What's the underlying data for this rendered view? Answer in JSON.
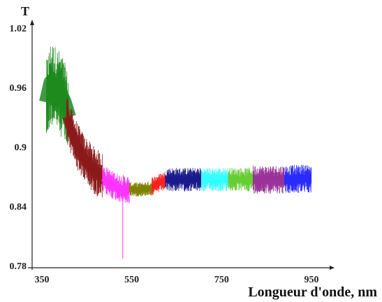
{
  "chart_data": {
    "type": "line",
    "title": "",
    "ylabel": "T",
    "xlabel": "Longueur d'onde, nm",
    "xlim": [
      340,
      975
    ],
    "ylim": [
      0.78,
      1.02
    ],
    "x_ticks": [
      350,
      550,
      750,
      950
    ],
    "x_tick_labels": [
      "350",
      "550",
      "750",
      "950"
    ],
    "y_ticks": [
      0.78,
      0.84,
      0.9,
      0.96,
      1.02
    ],
    "y_tick_labels": [
      "0.78",
      "0.84",
      "0.9",
      "0.96",
      "1.02"
    ],
    "grid": false,
    "legend": "none",
    "series": [
      {
        "color": "#1e8a1e",
        "x": [
          360,
          370,
          380,
          390,
          400,
          410
        ],
        "y": [
          0.945,
          0.965,
          0.96,
          0.955,
          0.945,
          0.93
        ],
        "noise": 0.035
      },
      {
        "color": "#8b1a1a",
        "x": [
          405,
          415,
          425,
          435,
          445,
          455,
          465,
          475,
          485
        ],
        "y": [
          0.93,
          0.915,
          0.905,
          0.895,
          0.888,
          0.882,
          0.877,
          0.873,
          0.87
        ],
        "noise": 0.02
      },
      {
        "color": "#ff33ff",
        "x": [
          485,
          495,
          505,
          515,
          525,
          535,
          545
        ],
        "y": [
          0.868,
          0.865,
          0.862,
          0.86,
          0.858,
          0.857,
          0.856
        ],
        "noise": 0.012
      },
      {
        "color": "#808000",
        "x": [
          545,
          555,
          565,
          575,
          585,
          595
        ],
        "y": [
          0.857,
          0.857,
          0.857,
          0.857,
          0.858,
          0.858
        ],
        "noise": 0.006
      },
      {
        "color": "#ff2020",
        "x": [
          595,
          605,
          615,
          625
        ],
        "y": [
          0.86,
          0.862,
          0.864,
          0.866
        ],
        "noise": 0.008
      },
      {
        "color": "#1a1a8c",
        "x": [
          625,
          645,
          665,
          685,
          705
        ],
        "y": [
          0.867,
          0.867,
          0.867,
          0.867,
          0.867
        ],
        "noise": 0.01
      },
      {
        "color": "#33ffff",
        "x": [
          705,
          725,
          745,
          765
        ],
        "y": [
          0.867,
          0.867,
          0.867,
          0.867
        ],
        "noise": 0.01
      },
      {
        "color": "#66cc33",
        "x": [
          765,
          785,
          805,
          820
        ],
        "y": [
          0.867,
          0.867,
          0.867,
          0.867
        ],
        "noise": 0.01
      },
      {
        "color": "#993399",
        "x": [
          820,
          840,
          860,
          880,
          890
        ],
        "y": [
          0.867,
          0.867,
          0.867,
          0.867,
          0.867
        ],
        "noise": 0.012
      },
      {
        "color": "#2a2aff",
        "x": [
          890,
          910,
          930,
          950
        ],
        "y": [
          0.867,
          0.867,
          0.868,
          0.868
        ],
        "noise": 0.012
      }
    ]
  }
}
